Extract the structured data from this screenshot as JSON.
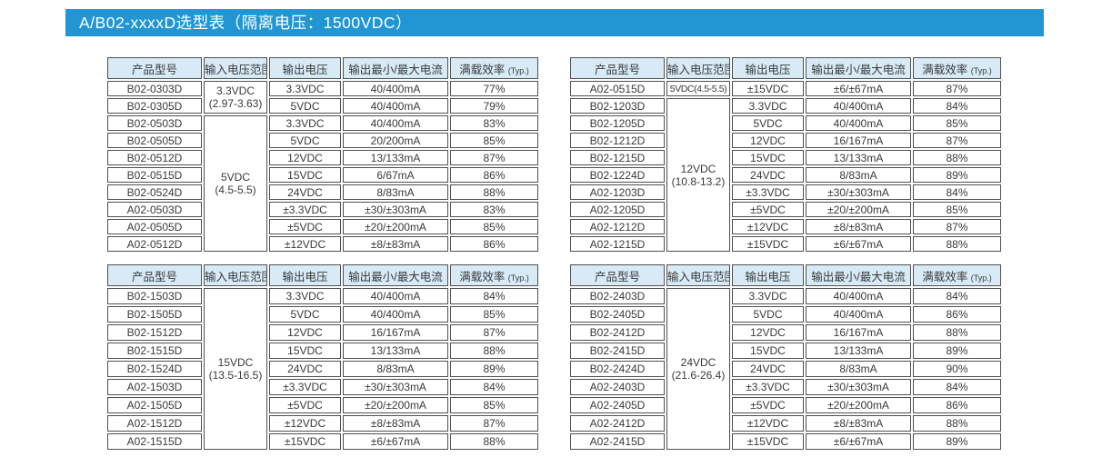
{
  "title_bar": {
    "text": "A/B02-xxxxD选型表（隔离电压：1500VDC）"
  },
  "colors": {
    "title_bar_bg": "#2196d3",
    "header_bg": "#d7eaf6",
    "cell_border": "#4f5052",
    "text": "#3a3a3c",
    "title_text": "#ffffff"
  },
  "column_headers": {
    "model": "产品型号",
    "input_range": "输入电压范围",
    "output_voltage": "输出电压",
    "output_min_max_current": "输出最小/最大电流",
    "full_load_efficiency": "满载效率",
    "efficiency_suffix": "(Typ.)"
  },
  "tables": [
    {
      "position": "top-left",
      "groups": [
        {
          "input_range_lines": [
            "3.3VDC",
            "(2.97-3.63)"
          ],
          "rows": [
            {
              "model": "B02-0303D",
              "output_voltage": "3.3VDC",
              "output_current": "40/400mA",
              "efficiency": "77%"
            },
            {
              "model": "B02-0305D",
              "output_voltage": "5VDC",
              "output_current": "40/400mA",
              "efficiency": "79%"
            }
          ]
        },
        {
          "input_range_lines": [
            "5VDC",
            "(4.5-5.5)"
          ],
          "rows": [
            {
              "model": "B02-0503D",
              "output_voltage": "3.3VDC",
              "output_current": "40/400mA",
              "efficiency": "83%"
            },
            {
              "model": "B02-0505D",
              "output_voltage": "5VDC",
              "output_current": "20/200mA",
              "efficiency": "85%"
            },
            {
              "model": "B02-0512D",
              "output_voltage": "12VDC",
              "output_current": "13/133mA",
              "efficiency": "87%"
            },
            {
              "model": "B02-0515D",
              "output_voltage": "15VDC",
              "output_current": "6/67mA",
              "efficiency": "86%"
            },
            {
              "model": "B02-0524D",
              "output_voltage": "24VDC",
              "output_current": "8/83mA",
              "efficiency": "88%"
            },
            {
              "model": "A02-0503D",
              "output_voltage": "±3.3VDC",
              "output_current": "±30/±303mA",
              "efficiency": "83%"
            },
            {
              "model": "A02-0505D",
              "output_voltage": "±5VDC",
              "output_current": "±20/±200mA",
              "efficiency": "85%"
            },
            {
              "model": "A02-0512D",
              "output_voltage": "±12VDC",
              "output_current": "±8/±83mA",
              "efficiency": "86%"
            }
          ]
        }
      ]
    },
    {
      "position": "top-right",
      "groups": [
        {
          "input_range_lines": [
            "5VDC(4.5-5.5)"
          ],
          "rows": [
            {
              "model": "A02-0515D",
              "output_voltage": "±15VDC",
              "output_current": "±6/±67mA",
              "efficiency": "87%"
            }
          ]
        },
        {
          "input_range_lines": [
            "12VDC",
            "(10.8-13.2)"
          ],
          "rows": [
            {
              "model": "B02-1203D",
              "output_voltage": "3.3VDC",
              "output_current": "40/400mA",
              "efficiency": "84%"
            },
            {
              "model": "B02-1205D",
              "output_voltage": "5VDC",
              "output_current": "40/400mA",
              "efficiency": "85%"
            },
            {
              "model": "B02-1212D",
              "output_voltage": "12VDC",
              "output_current": "16/167mA",
              "efficiency": "87%"
            },
            {
              "model": "B02-1215D",
              "output_voltage": "15VDC",
              "output_current": "13/133mA",
              "efficiency": "88%"
            },
            {
              "model": "B02-1224D",
              "output_voltage": "24VDC",
              "output_current": "8/83mA",
              "efficiency": "89%"
            },
            {
              "model": "A02-1203D",
              "output_voltage": "±3.3VDC",
              "output_current": "±30/±303mA",
              "efficiency": "84%"
            },
            {
              "model": "A02-1205D",
              "output_voltage": "±5VDC",
              "output_current": "±20/±200mA",
              "efficiency": "85%"
            },
            {
              "model": "A02-1212D",
              "output_voltage": "±12VDC",
              "output_current": "±8/±83mA",
              "efficiency": "87%"
            },
            {
              "model": "A02-1215D",
              "output_voltage": "±15VDC",
              "output_current": "±6/±67mA",
              "efficiency": "88%"
            }
          ]
        }
      ]
    },
    {
      "position": "bottom-left",
      "groups": [
        {
          "input_range_lines": [
            "15VDC",
            "(13.5-16.5)"
          ],
          "rows": [
            {
              "model": "B02-1503D",
              "output_voltage": "3.3VDC",
              "output_current": "40/400mA",
              "efficiency": "84%"
            },
            {
              "model": "B02-1505D",
              "output_voltage": "5VDC",
              "output_current": "40/400mA",
              "efficiency": "85%"
            },
            {
              "model": "B02-1512D",
              "output_voltage": "12VDC",
              "output_current": "16/167mA",
              "efficiency": "87%"
            },
            {
              "model": "B02-1515D",
              "output_voltage": "15VDC",
              "output_current": "13/133mA",
              "efficiency": "88%"
            },
            {
              "model": "B02-1524D",
              "output_voltage": "24VDC",
              "output_current": "8/83mA",
              "efficiency": "89%"
            },
            {
              "model": "A02-1503D",
              "output_voltage": "±3.3VDC",
              "output_current": "±30/±303mA",
              "efficiency": "84%"
            },
            {
              "model": "A02-1505D",
              "output_voltage": "±5VDC",
              "output_current": "±20/±200mA",
              "efficiency": "85%"
            },
            {
              "model": "A02-1512D",
              "output_voltage": "±12VDC",
              "output_current": "±8/±83mA",
              "efficiency": "87%"
            },
            {
              "model": "A02-1515D",
              "output_voltage": "±15VDC",
              "output_current": "±6/±67mA",
              "efficiency": "88%"
            }
          ]
        }
      ]
    },
    {
      "position": "bottom-right",
      "groups": [
        {
          "input_range_lines": [
            "24VDC",
            "(21.6-26.4)"
          ],
          "rows": [
            {
              "model": "B02-2403D",
              "output_voltage": "3.3VDC",
              "output_current": "40/400mA",
              "efficiency": "84%"
            },
            {
              "model": "B02-2405D",
              "output_voltage": "5VDC",
              "output_current": "40/400mA",
              "efficiency": "86%"
            },
            {
              "model": "B02-2412D",
              "output_voltage": "12VDC",
              "output_current": "16/167mA",
              "efficiency": "88%"
            },
            {
              "model": "B02-2415D",
              "output_voltage": "15VDC",
              "output_current": "13/133mA",
              "efficiency": "89%"
            },
            {
              "model": "B02-2424D",
              "output_voltage": "24VDC",
              "output_current": "8/83mA",
              "efficiency": "90%"
            },
            {
              "model": "A02-2403D",
              "output_voltage": "±3.3VDC",
              "output_current": "±30/±303mA",
              "efficiency": "84%"
            },
            {
              "model": "A02-2405D",
              "output_voltage": "±5VDC",
              "output_current": "±20/±200mA",
              "efficiency": "86%"
            },
            {
              "model": "A02-2412D",
              "output_voltage": "±12VDC",
              "output_current": "±8/±83mA",
              "efficiency": "88%"
            },
            {
              "model": "A02-2415D",
              "output_voltage": "±15VDC",
              "output_current": "±6/±67mA",
              "efficiency": "89%"
            }
          ]
        }
      ]
    }
  ]
}
